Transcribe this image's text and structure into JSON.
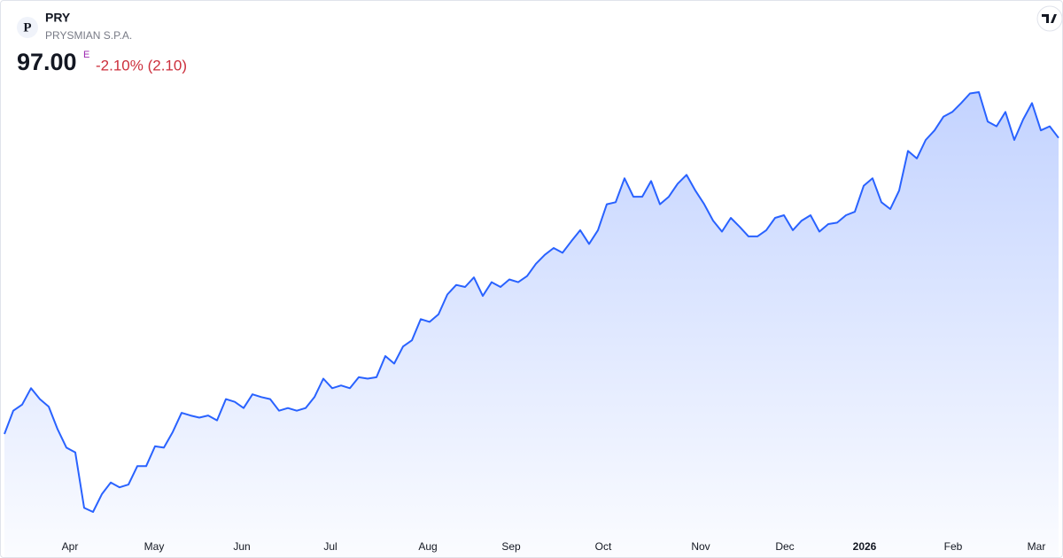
{
  "header": {
    "logo_letter": "P",
    "symbol": "PRY",
    "name": "PRYSMIAN S.P.A.",
    "price": "97.00",
    "flag": "E",
    "change": "-2.10% (2.10)"
  },
  "chart_data": {
    "type": "area",
    "color": "#2962ff",
    "values": [
      53.7,
      57.1,
      58.0,
      60.4,
      58.8,
      57.7,
      54.4,
      51.7,
      51.0,
      42.9,
      42.3,
      44.9,
      46.6,
      45.9,
      46.3,
      49.0,
      49.0,
      51.9,
      51.7,
      54.0,
      56.8,
      56.4,
      56.1,
      56.4,
      55.7,
      58.8,
      58.4,
      57.5,
      59.5,
      59.1,
      58.8,
      57.1,
      57.5,
      57.1,
      57.5,
      59.1,
      61.8,
      60.4,
      60.8,
      60.4,
      62.0,
      61.8,
      62.0,
      65.1,
      64.0,
      66.5,
      67.4,
      70.5,
      70.1,
      71.2,
      74.1,
      75.5,
      75.2,
      76.6,
      73.9,
      75.9,
      75.2,
      76.3,
      75.9,
      76.8,
      78.6,
      79.9,
      80.9,
      80.2,
      81.9,
      83.5,
      81.5,
      83.5,
      87.3,
      87.6,
      91.1,
      88.4,
      88.4,
      90.7,
      87.3,
      88.4,
      90.3,
      91.6,
      89.3,
      87.3,
      84.9,
      83.3,
      85.3,
      84.0,
      82.6,
      82.6,
      83.5,
      85.3,
      85.7,
      83.5,
      84.9,
      85.7,
      83.3,
      84.4,
      84.6,
      85.7,
      86.2,
      90.0,
      91.1,
      87.6,
      86.6,
      89.3,
      95.1,
      94.0,
      96.7,
      98.1,
      100.1,
      100.8,
      102.1,
      103.5,
      103.7,
      99.4,
      98.7,
      100.8,
      96.7,
      99.7,
      102.1,
      98.1,
      98.7,
      97.0
    ],
    "xticks": [
      {
        "value": 7.4,
        "label": "Apr"
      },
      {
        "value": 16.9,
        "label": "May"
      },
      {
        "value": 26.8,
        "label": "Jun"
      },
      {
        "value": 36.8,
        "label": "Jul"
      },
      {
        "value": 47.8,
        "label": "Aug"
      },
      {
        "value": 57.2,
        "label": "Sep"
      },
      {
        "value": 67.6,
        "label": "Oct"
      },
      {
        "value": 78.6,
        "label": "Nov"
      },
      {
        "value": 88.1,
        "label": "Dec"
      },
      {
        "value": 97.1,
        "label": "2026"
      },
      {
        "value": 107.1,
        "label": "Feb"
      },
      {
        "value": 116.5,
        "label": "Mar"
      }
    ]
  }
}
